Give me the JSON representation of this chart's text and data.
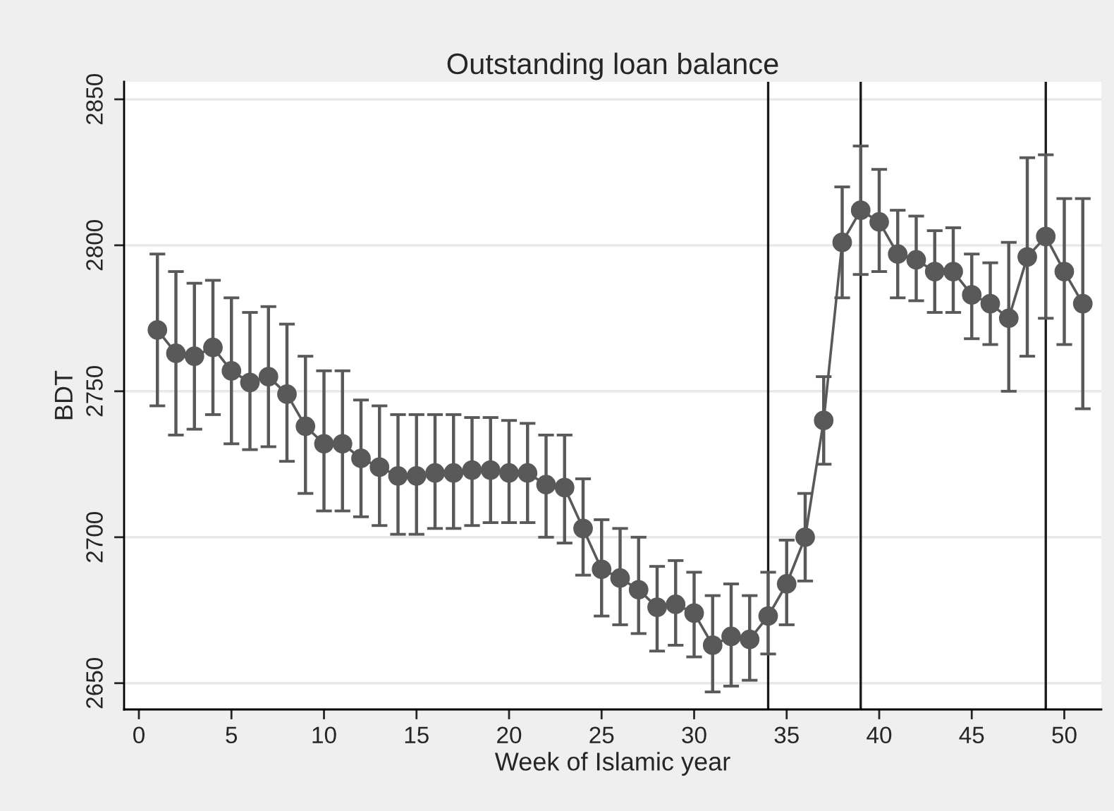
{
  "chart_data": {
    "type": "line",
    "title": "Outstanding loan balance",
    "xlabel": "Week of Islamic year",
    "ylabel": "BDT",
    "x": [
      1,
      2,
      3,
      4,
      5,
      6,
      7,
      8,
      9,
      10,
      11,
      12,
      13,
      14,
      15,
      16,
      17,
      18,
      19,
      20,
      21,
      22,
      23,
      24,
      25,
      26,
      27,
      28,
      29,
      30,
      31,
      32,
      33,
      34,
      35,
      36,
      37,
      38,
      39,
      40,
      41,
      42,
      43,
      44,
      45,
      46,
      47,
      48,
      49,
      50,
      51
    ],
    "series": [
      {
        "color": "#595959",
        "marker": "circle",
        "line_style": "solid",
        "values": [
          2771,
          2763,
          2762,
          2765,
          2757,
          2753,
          2755,
          2749,
          2738,
          2732,
          2732,
          2727,
          2724,
          2721,
          2721,
          2722,
          2722,
          2723,
          2723,
          2722,
          2722,
          2718,
          2717,
          2703,
          2689,
          2686,
          2682,
          2676,
          2677,
          2674,
          2663,
          2666,
          2665,
          2673,
          2684,
          2700,
          2740,
          2801,
          2812,
          2808,
          2797,
          2795,
          2791,
          2791,
          2783,
          2780,
          2775,
          2796,
          2803,
          2791,
          2780
        ],
        "errors": [
          [
            2745,
            2797
          ],
          [
            2735,
            2791
          ],
          [
            2737,
            2787
          ],
          [
            2742,
            2788
          ],
          [
            2732,
            2782
          ],
          [
            2730,
            2777
          ],
          [
            2731,
            2779
          ],
          [
            2726,
            2773
          ],
          [
            2715,
            2762
          ],
          [
            2709,
            2757
          ],
          [
            2709,
            2757
          ],
          [
            2707,
            2747
          ],
          [
            2704,
            2745
          ],
          [
            2701,
            2742
          ],
          [
            2701,
            2742
          ],
          [
            2703,
            2742
          ],
          [
            2703,
            2742
          ],
          [
            2704,
            2741
          ],
          [
            2705,
            2741
          ],
          [
            2705,
            2740
          ],
          [
            2705,
            2739
          ],
          [
            2700,
            2735
          ],
          [
            2698,
            2735
          ],
          [
            2687,
            2720
          ],
          [
            2673,
            2706
          ],
          [
            2670,
            2703
          ],
          [
            2667,
            2700
          ],
          [
            2661,
            2690
          ],
          [
            2663,
            2692
          ],
          [
            2659,
            2688
          ],
          [
            2647,
            2680
          ],
          [
            2649,
            2684
          ],
          [
            2651,
            2680
          ],
          [
            2660,
            2688
          ],
          [
            2670,
            2699
          ],
          [
            2685,
            2715
          ],
          [
            2725,
            2755
          ],
          [
            2782,
            2820
          ],
          [
            2790,
            2834
          ],
          [
            2791,
            2826
          ],
          [
            2782,
            2812
          ],
          [
            2781,
            2810
          ],
          [
            2777,
            2805
          ],
          [
            2777,
            2806
          ],
          [
            2768,
            2797
          ],
          [
            2766,
            2794
          ],
          [
            2750,
            2801
          ],
          [
            2762,
            2830
          ],
          [
            2775,
            2831
          ],
          [
            2766,
            2816
          ],
          [
            2744,
            2816
          ]
        ]
      }
    ],
    "xlim": [
      -0.8,
      52
    ],
    "ylim": [
      2641,
      2856
    ],
    "xticks": [
      0,
      5,
      10,
      15,
      20,
      25,
      30,
      35,
      40,
      45,
      50
    ],
    "yticks": [
      2650,
      2700,
      2750,
      2800,
      2850
    ],
    "ref_lines": [
      {
        "axis": "x",
        "value": 34,
        "color": "#1a1a1a"
      },
      {
        "axis": "x",
        "value": 39,
        "color": "#1a1a1a"
      },
      {
        "axis": "x",
        "value": 49,
        "color": "#1a1a1a"
      }
    ],
    "grid": "y",
    "legend": false
  }
}
